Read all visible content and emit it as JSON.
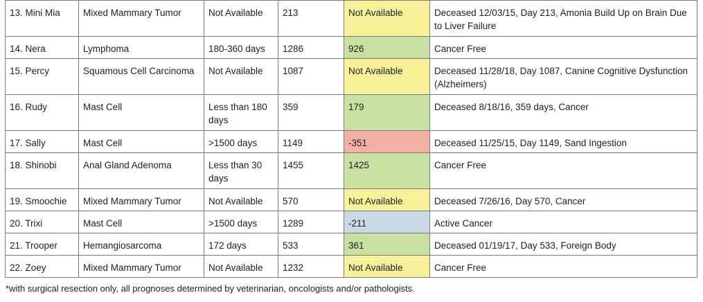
{
  "rows": [
    {
      "patient": "13. Mini Mia",
      "diagnosis": "Mixed Mammary Tumor",
      "prognosis": "Not Available",
      "days": "213",
      "difference": "Not Available",
      "status_color": "#f7f29a",
      "outcome": "Deceased 12/03/15, Day 213, Amonia Build Up on Brain Due to Liver Failure"
    },
    {
      "patient": "14. Nera",
      "diagnosis": "Lymphoma",
      "prognosis": "180-360 days",
      "days": "1286",
      "difference": "926",
      "status_color": "#c8e0a2",
      "outcome": "Cancer Free"
    },
    {
      "patient": "15. Percy",
      "diagnosis": "Squamous Cell Carcinoma",
      "prognosis": "Not Available",
      "days": "1087",
      "difference": "Not Available",
      "status_color": "#f7f29a",
      "outcome": "Deceased 11/28/18, Day 1087, Canine Cognitive Dysfunction (Alzheimers)"
    },
    {
      "patient": "16. Rudy",
      "diagnosis": "Mast Cell",
      "prognosis": "Less than 180 days",
      "days": "359",
      "difference": "179",
      "status_color": "#c8e0a2",
      "outcome": "Deceased 8/18/16, 359 days, Cancer"
    },
    {
      "patient": "17. Sally",
      "diagnosis": "Mast Cell",
      "prognosis": ">1500 days",
      "days": "1149",
      "difference": "-351",
      "status_color": "#f3b1a5",
      "outcome": "Deceased 11/25/15, Day 1149, Sand Ingestion"
    },
    {
      "patient": "18. Shinobi",
      "diagnosis": "Anal Gland Adenoma",
      "prognosis": "Less than 30 days",
      "days": "1455",
      "difference": "1425",
      "status_color": "#c8e0a2",
      "outcome": "Cancer Free"
    },
    {
      "patient": "19. Smoochie",
      "diagnosis": "Mixed Mammary Tumor",
      "prognosis": "Not Available",
      "days": "570",
      "difference": "Not Available",
      "status_color": "#f7f29a",
      "outcome": "Deceased 7/26/16, Day 570, Cancer"
    },
    {
      "patient": "20. Trixi",
      "diagnosis": "Mast Cell",
      "prognosis": ">1500 days",
      "days": "1289",
      "difference": "-211",
      "status_color": "#c9dae6",
      "outcome": "Active Cancer"
    },
    {
      "patient": "21. Trooper",
      "diagnosis": "Hemangiosarcoma",
      "prognosis": "172 days",
      "days": "533",
      "difference": "361",
      "status_color": "#c8e0a2",
      "outcome": "Deceased 01/19/17, Day 533, Foreign Body"
    },
    {
      "patient": "22. Zoey",
      "diagnosis": "Mixed Mammary Tumor",
      "prognosis": "Not Available",
      "days": "1232",
      "difference": "Not Available",
      "status_color": "#f7f29a",
      "outcome": "Cancer Free"
    }
  ],
  "footnote": "*with surgical resection only, all prognoses determined by veterinarian, oncologists and/or pathologists."
}
